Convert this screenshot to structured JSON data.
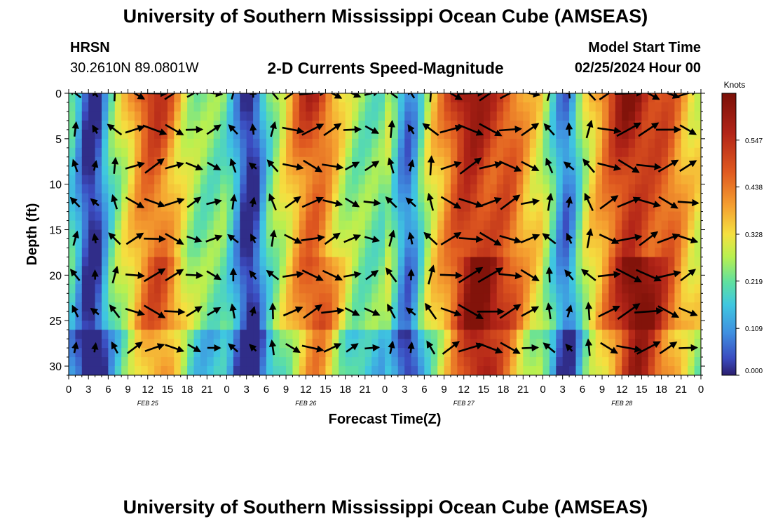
{
  "header": {
    "title": "University of Southern Mississippi Ocean Cube (AMSEAS)",
    "station": "HRSN",
    "coordinates": "30.2610N  89.0801W",
    "subtitle": "2-D Currents Speed-Magnitude",
    "model_start_label": "Model Start Time",
    "model_start_value": "02/25/2024 Hour 00"
  },
  "footer": {
    "title": "University of Southern Mississippi Ocean Cube (AMSEAS)"
  },
  "chart_data": {
    "type": "heatmap",
    "title": "2-D Currents Speed-Magnitude",
    "xlabel": "Forecast Time(Z)",
    "ylabel": "Depth (ft)",
    "x_ticks": [
      "0",
      "3",
      "6",
      "9",
      "12",
      "15",
      "18",
      "21",
      "0",
      "3",
      "6",
      "9",
      "12",
      "15",
      "18",
      "21",
      "0",
      "3",
      "6",
      "9",
      "12",
      "15",
      "18",
      "21",
      "0",
      "3",
      "6",
      "9",
      "12",
      "15",
      "18",
      "21",
      "0"
    ],
    "date_labels": [
      {
        "label": "FEB 25",
        "hour": 12
      },
      {
        "label": "FEB 26",
        "hour": 36
      },
      {
        "label": "FEB 27",
        "hour": 60
      },
      {
        "label": "FEB 28",
        "hour": 84
      }
    ],
    "x_range_hours": [
      0,
      96
    ],
    "y_ticks": [
      0,
      5,
      10,
      15,
      20,
      25,
      30
    ],
    "ylim": [
      0,
      31
    ],
    "arrow_depths": [
      0,
      4,
      8,
      12,
      16,
      20,
      24,
      28
    ],
    "colorbar": {
      "unit": "Knots",
      "ticks": [
        "0.547",
        "0.438",
        "0.328",
        "0.219",
        "0.109",
        "0.000"
      ],
      "range": [
        0.0,
        0.656
      ]
    },
    "colors": [
      "#2b1e6e",
      "#3b4cc0",
      "#3f8fe0",
      "#3fc7e0",
      "#5fe0a0",
      "#b8f050",
      "#f5e040",
      "#f5a030",
      "#e05a20",
      "#b22418",
      "#7a1008"
    ]
  }
}
